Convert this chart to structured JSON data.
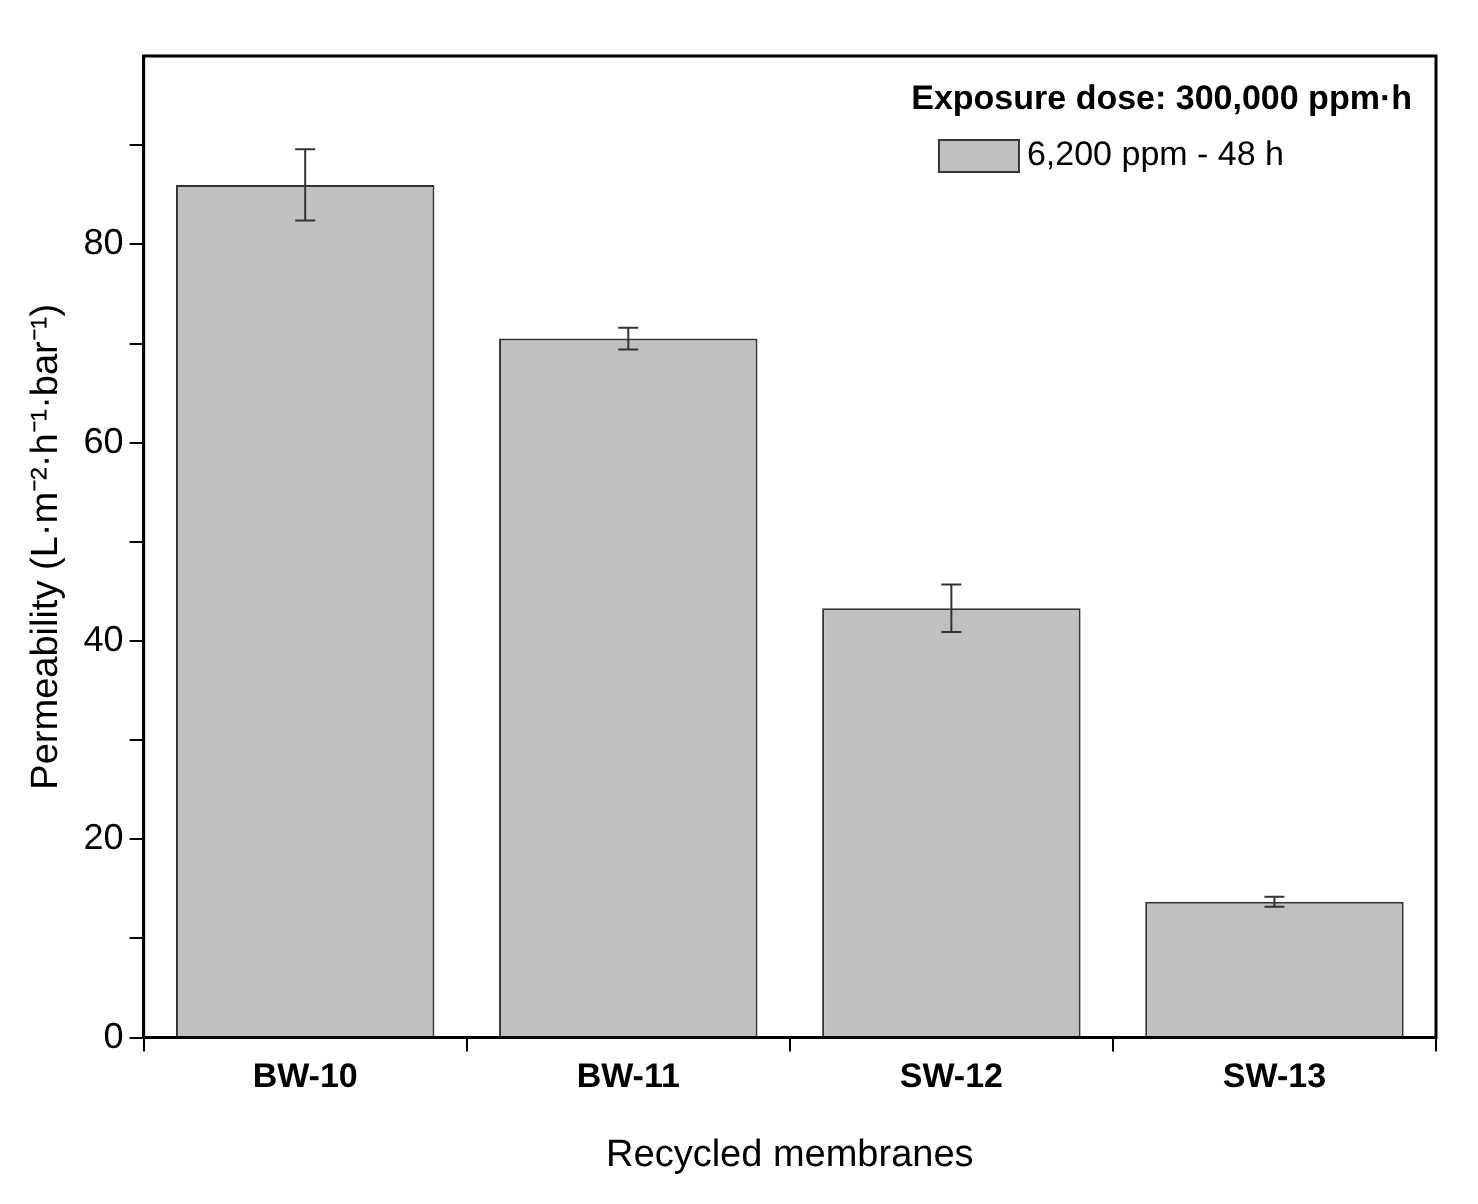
{
  "chart_data": {
    "type": "bar",
    "xlabel": "Recycled membranes",
    "ylabel": "Permeability (L·m⁻²·h⁻¹·bar⁻¹)",
    "legend_title": "Exposure dose: 300,000 ppm·h",
    "categories": [
      "BW-10",
      "BW-11",
      "SW-12",
      "SW-13"
    ],
    "series": [
      {
        "name": "6,200 ppm - 48 h",
        "color": "#c0c0c0",
        "values": [
          86,
          70.5,
          43.3,
          13.7
        ],
        "errors": [
          3.6,
          1.1,
          2.4,
          0.5
        ]
      }
    ],
    "ylim": [
      0,
      99
    ],
    "yticks": [
      0,
      {
        "value": 10,
        "label": null
      },
      20,
      {
        "value": 30,
        "label": null
      },
      40,
      {
        "value": 50,
        "label": null
      },
      60,
      {
        "value": 70,
        "label": null
      },
      80,
      {
        "value": 90,
        "label": null
      }
    ],
    "grid": false,
    "legend": "top right"
  }
}
